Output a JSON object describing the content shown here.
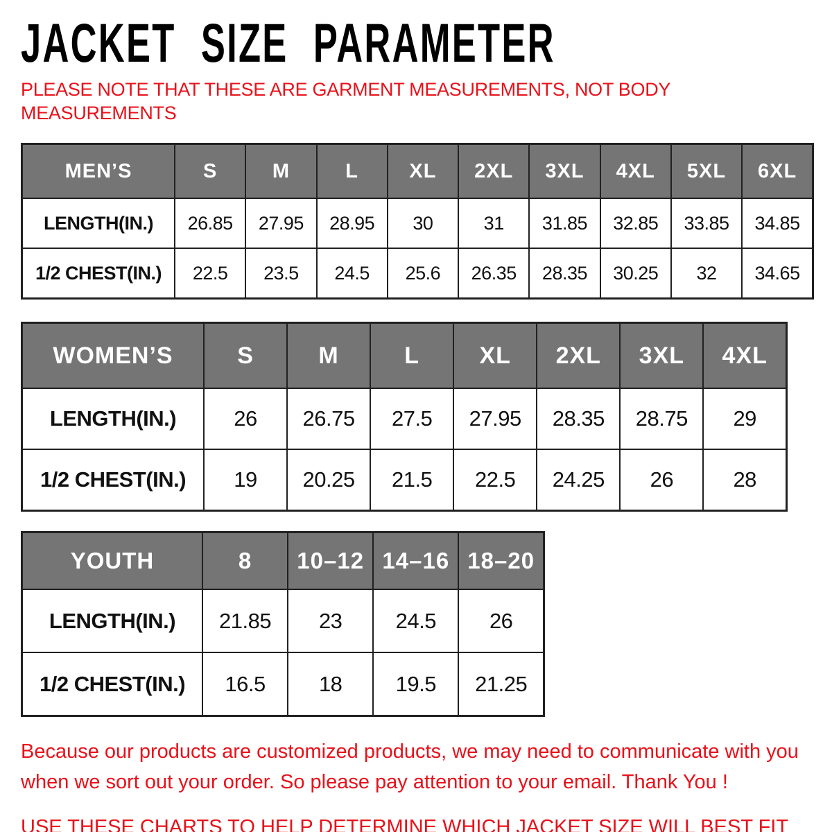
{
  "header": {
    "title": "JACKET SIZE PARAMETER",
    "note_line1": "PLEASE NOTE THAT THESE ARE GARMENT MEASUREMENTS, NOT BODY",
    "note_line2": "MEASUREMENTS"
  },
  "tables": [
    {
      "name": "MEN’S",
      "columns": [
        "S",
        "M",
        "L",
        "XL",
        "2XL",
        "3XL",
        "4XL",
        "5XL",
        "6XL"
      ],
      "rows": [
        {
          "label": "LENGTH(IN.)",
          "values": [
            "26.85",
            "27.95",
            "28.95",
            "30",
            "31",
            "31.85",
            "32.85",
            "33.85",
            "34.85"
          ]
        },
        {
          "label": "1/2 CHEST(IN.)",
          "values": [
            "22.5",
            "23.5",
            "24.5",
            "25.6",
            "26.35",
            "28.35",
            "30.25",
            "32",
            "34.65"
          ]
        }
      ]
    },
    {
      "name": "WOMEN’S",
      "columns": [
        "S",
        "M",
        "L",
        "XL",
        "2XL",
        "3XL",
        "4XL"
      ],
      "rows": [
        {
          "label": "LENGTH(IN.)",
          "values": [
            "26",
            "26.75",
            "27.5",
            "27.95",
            "28.35",
            "28.75",
            "29"
          ]
        },
        {
          "label": "1/2 CHEST(IN.)",
          "values": [
            "19",
            "20.25",
            "21.5",
            "22.5",
            "24.25",
            "26",
            "28"
          ]
        }
      ]
    },
    {
      "name": "YOUTH",
      "columns": [
        "8",
        "10–12",
        "14–16",
        "18–20"
      ],
      "rows": [
        {
          "label": "LENGTH(IN.)",
          "values": [
            "21.85",
            "23",
            "24.5",
            "26"
          ]
        },
        {
          "label": "1/2 CHEST(IN.)",
          "values": [
            "16.5",
            "18",
            "19.5",
            "21.25"
          ]
        }
      ]
    }
  ],
  "footer": {
    "para_line1": "Because our products are customized products, we may need to communicate with you",
    "para_line2": "when we sort out your order. So please pay attention to your email. Thank You !",
    "usage_line": "USE THESE CHARTS TO HELP DETERMINE WHICH JACKET SIZE WILL BEST FIT YOU."
  },
  "colors": {
    "accent_red": "#e8111a",
    "header_gray": "#757575",
    "border": "#212121"
  }
}
